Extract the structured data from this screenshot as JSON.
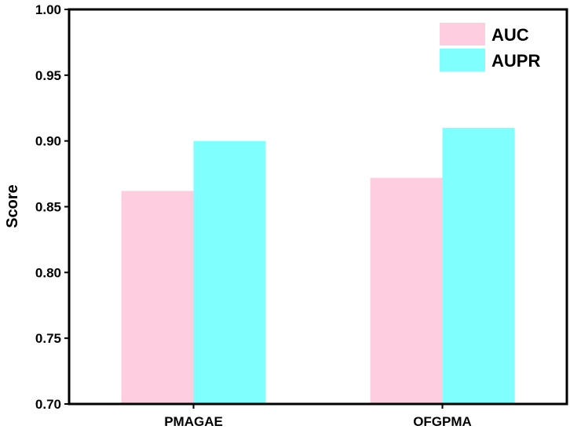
{
  "chart_data": {
    "type": "bar",
    "title": "",
    "xlabel": "",
    "ylabel": "Score",
    "categories": [
      "PMAGAE",
      "OFGPMA"
    ],
    "series": [
      {
        "name": "AUC",
        "color": "#FFCCE0",
        "values": [
          0.862,
          0.872
        ]
      },
      {
        "name": "AUPR",
        "color": "#80FFFF",
        "values": [
          0.9,
          0.91
        ]
      }
    ],
    "ylim": [
      0.7,
      1.0
    ],
    "yticks": [
      "0.70",
      "0.75",
      "0.80",
      "0.85",
      "0.90",
      "0.95",
      "1.00"
    ],
    "grid": false,
    "legend_position": "top-right"
  }
}
